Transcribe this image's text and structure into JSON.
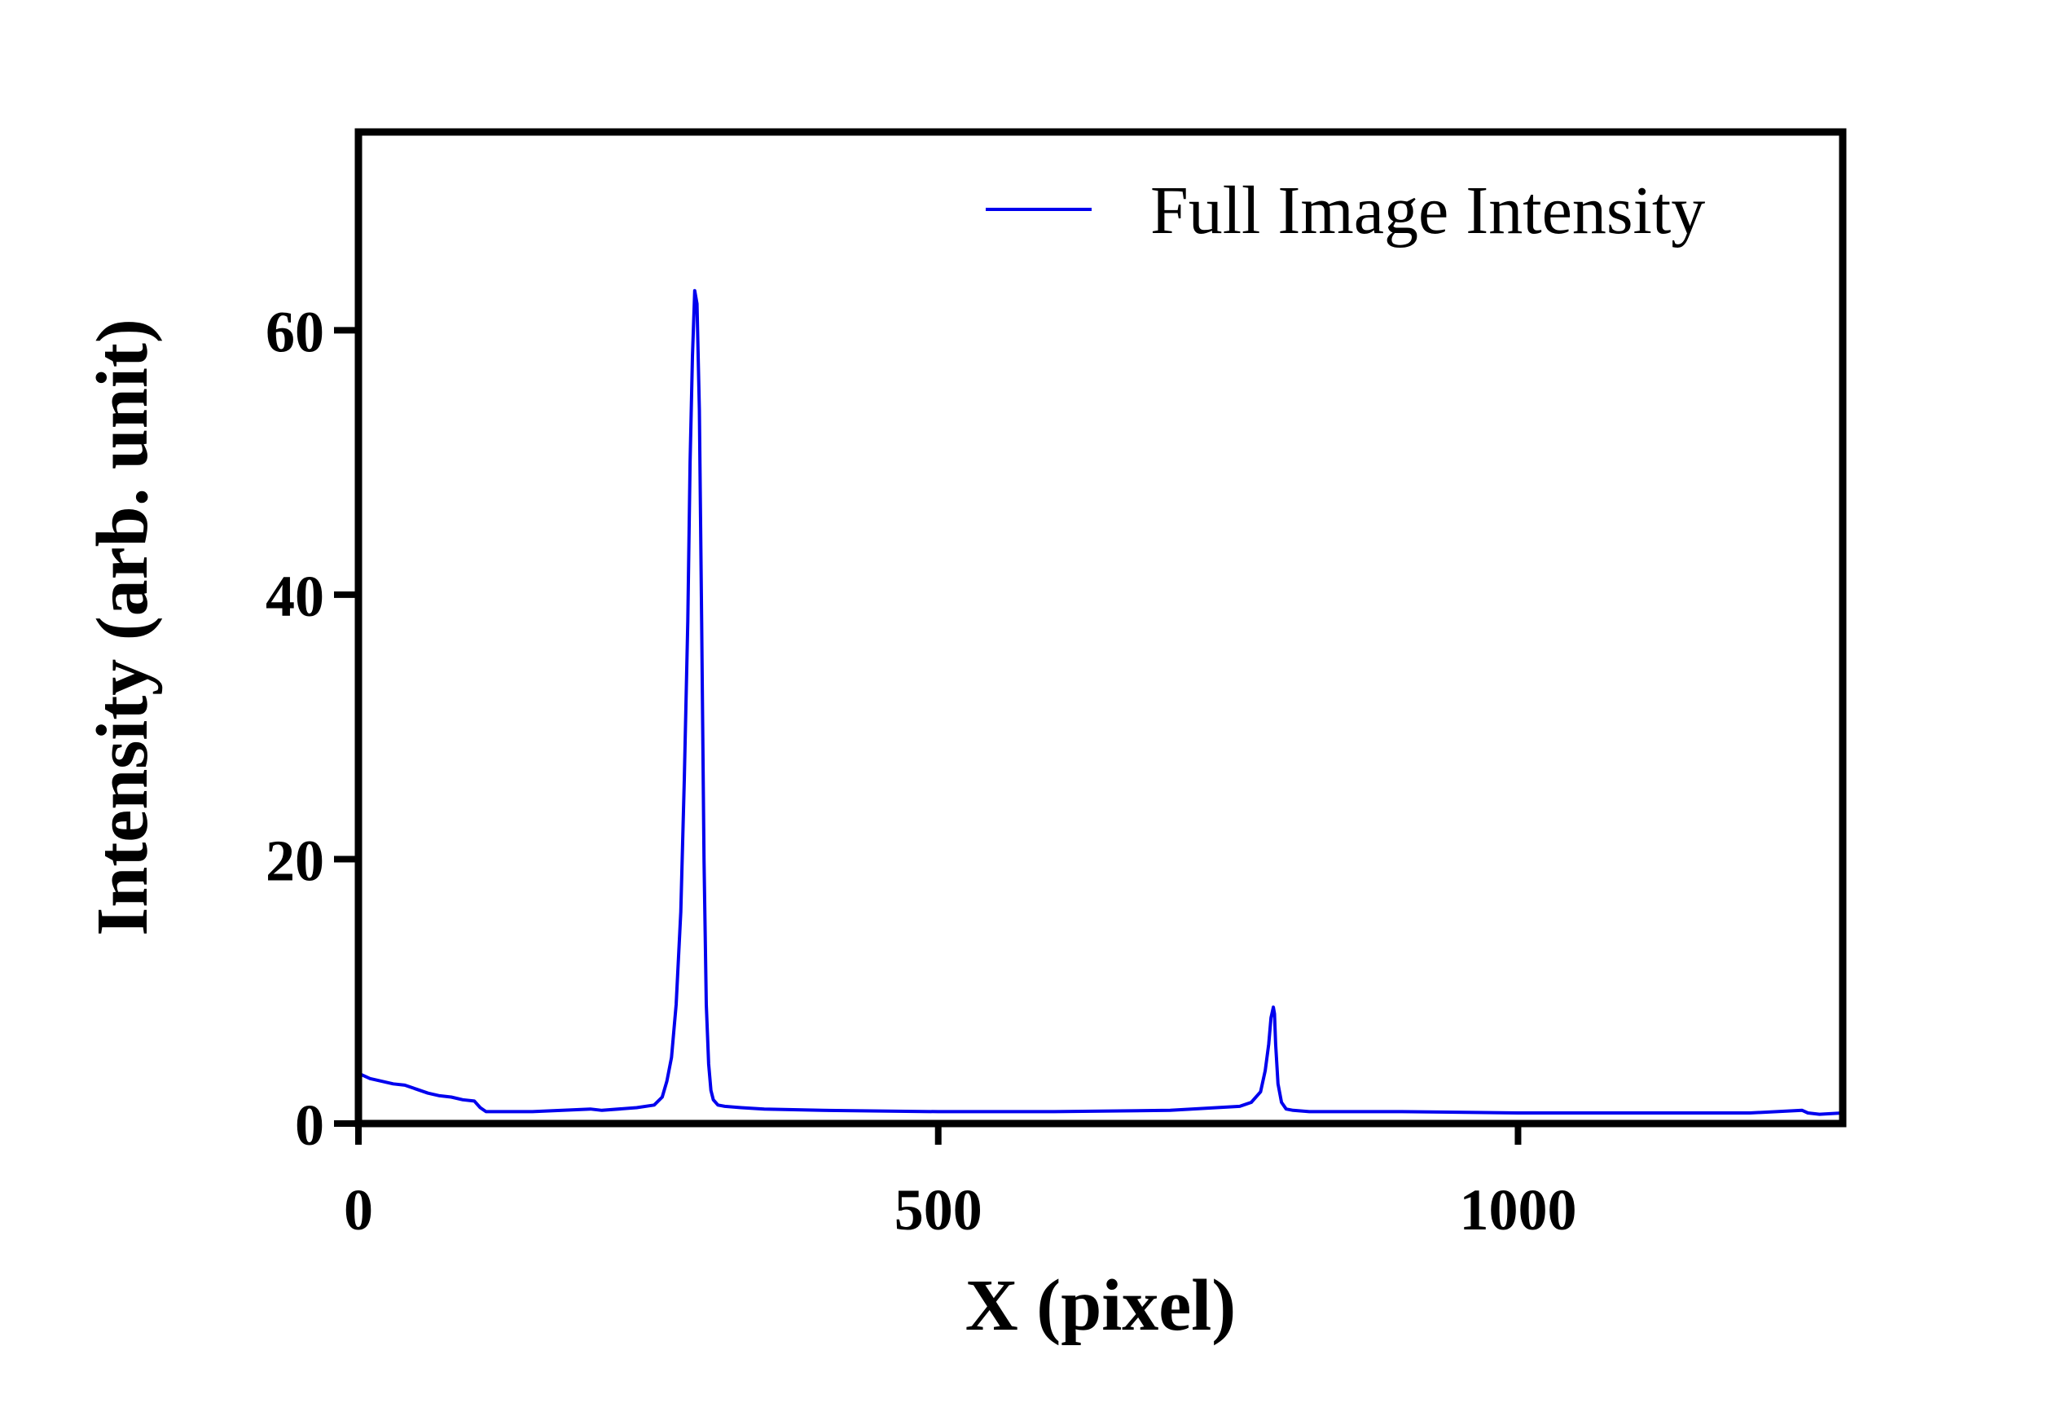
{
  "chart_data": {
    "type": "line",
    "title": "",
    "xlabel": "X (pixel)",
    "ylabel": "Intensity (arb. unit)",
    "xlim": [
      0,
      1280
    ],
    "ylim": [
      0,
      75
    ],
    "x_ticks": [
      0,
      500,
      1000
    ],
    "y_ticks": [
      0,
      20,
      40,
      60
    ],
    "x_tick_labels": [
      "0",
      "500",
      "1000"
    ],
    "y_tick_labels": [
      "0",
      "20",
      "40",
      "60"
    ],
    "grid": false,
    "legend_position": "top-right",
    "series": [
      {
        "name": "Full Image Intensity",
        "color": "#0000ee",
        "x": [
          0,
          5,
          10,
          20,
          30,
          40,
          50,
          60,
          70,
          80,
          90,
          100,
          105,
          110,
          115,
          150,
          200,
          210,
          240,
          255,
          262,
          266,
          270,
          274,
          278,
          281,
          284,
          286,
          288,
          290,
          292,
          294,
          296,
          298,
          300,
          302,
          304,
          306,
          310,
          316,
          330,
          350,
          400,
          500,
          600,
          700,
          760,
          770,
          778,
          782,
          785,
          787,
          789,
          790,
          791,
          793,
          796,
          800,
          806,
          820,
          900,
          1000,
          1100,
          1200,
          1245,
          1250,
          1260,
          1280
        ],
        "values": [
          3.8,
          3.6,
          3.4,
          3.2,
          3.0,
          2.9,
          2.6,
          2.3,
          2.1,
          2.0,
          1.8,
          1.7,
          1.2,
          0.9,
          0.9,
          0.9,
          1.1,
          1.0,
          1.2,
          1.4,
          2.0,
          3.2,
          5.0,
          9.0,
          16.0,
          26.0,
          38.0,
          50.0,
          58.0,
          63.0,
          62.0,
          54.0,
          38.0,
          20.0,
          9.0,
          4.5,
          2.5,
          1.8,
          1.4,
          1.3,
          1.2,
          1.1,
          1.0,
          0.9,
          0.9,
          1.0,
          1.3,
          1.6,
          2.4,
          4.0,
          6.0,
          8.0,
          8.8,
          8.3,
          6.0,
          3.0,
          1.6,
          1.1,
          1.0,
          0.9,
          0.9,
          0.8,
          0.8,
          0.8,
          1.0,
          0.8,
          0.7,
          0.8
        ]
      }
    ]
  }
}
